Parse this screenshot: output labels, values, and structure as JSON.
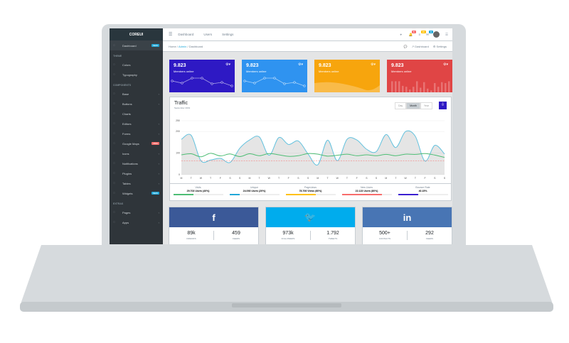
{
  "brand": "COREUI",
  "sidebar": {
    "dashboard": {
      "label": "Dashboard",
      "badge": "NEW"
    },
    "theme_title": "THEME",
    "theme": [
      {
        "label": "Colors",
        "icon": "drop-icon"
      },
      {
        "label": "Typography",
        "icon": "pencil-icon"
      }
    ],
    "components_title": "COMPONENTS",
    "components": [
      {
        "label": "Base",
        "icon": "puzzle-icon",
        "caret": true
      },
      {
        "label": "Buttons",
        "icon": "cursor-icon",
        "caret": true
      },
      {
        "label": "Charts",
        "icon": "pie-chart-icon"
      },
      {
        "label": "Editors",
        "icon": "code-icon",
        "caret": true
      },
      {
        "label": "Forms",
        "icon": "note-icon",
        "caret": true
      },
      {
        "label": "Google Maps",
        "icon": "map-icon",
        "badge": "PRO",
        "badge_color": "#f86c6b"
      },
      {
        "label": "Icons",
        "icon": "star-icon",
        "caret": true
      },
      {
        "label": "Notifications",
        "icon": "bell-icon",
        "caret": true
      },
      {
        "label": "Plugins",
        "icon": "energy-icon",
        "caret": true
      },
      {
        "label": "Tables",
        "icon": "list-icon",
        "caret": true
      },
      {
        "label": "Widgets",
        "icon": "calculator-icon",
        "badge": "NEW",
        "badge_color": "#20a8d8"
      }
    ],
    "extras_title": "EXTRAS",
    "extras": [
      {
        "label": "Pages",
        "icon": "star-icon",
        "caret": true
      },
      {
        "label": "Apps",
        "icon": "layers-icon",
        "caret": true
      }
    ]
  },
  "header": {
    "nav": [
      "Dashboard",
      "Users",
      "Settings"
    ],
    "badges": [
      "5",
      "15",
      "9"
    ]
  },
  "breadcrumb": {
    "items": [
      "Home",
      "Admin",
      "Dashboard"
    ],
    "right": [
      "Dashboard",
      "Settings"
    ]
  },
  "stats": [
    {
      "value": "9.823",
      "label": "Members online",
      "color": "#2e19c4"
    },
    {
      "value": "9.823",
      "label": "Members online",
      "color": "#2f93f0"
    },
    {
      "value": "9.823",
      "label": "Members online",
      "color": "#f7a50d"
    },
    {
      "value": "9.823",
      "label": "Members online",
      "color": "#e04545"
    }
  ],
  "traffic": {
    "title": "Traffic",
    "subtitle": "September 2019",
    "ranges": [
      "Day",
      "Month",
      "Year"
    ],
    "active_range": "Month"
  },
  "chart_data": {
    "type": "line",
    "ylim": [
      0,
      250
    ],
    "yticks": [
      0,
      100,
      200,
      250
    ],
    "categories": [
      "M",
      "T",
      "W",
      "T",
      "F",
      "S",
      "S",
      "M",
      "T",
      "W",
      "T",
      "F",
      "S",
      "S",
      "M",
      "T",
      "W",
      "T",
      "F",
      "S",
      "S",
      "M",
      "T",
      "W",
      "T",
      "F",
      "S",
      "S"
    ],
    "series": [
      {
        "values": [
          164,
          183,
          65,
          68,
          76,
          57,
          123,
          161,
          175,
          90,
          172,
          140,
          156,
          96,
          46,
          160,
          65,
          164,
          161,
          118,
          107,
          186,
          126,
          200,
          178,
          63,
          136,
          96
        ],
        "color": "#63c2de"
      },
      {
        "values": [
          92,
          97,
          83,
          99,
          87,
          96,
          84,
          97,
          88,
          98,
          92,
          85,
          88,
          98,
          95,
          86,
          90,
          95,
          88,
          92,
          88,
          94,
          88,
          95,
          94,
          98,
          91,
          80
        ],
        "color": "#4dbd74"
      },
      {
        "values": [
          65,
          65,
          65,
          65,
          65,
          65,
          65,
          65,
          65,
          65,
          65,
          65,
          65,
          65,
          65,
          65,
          65,
          65,
          65,
          65,
          65,
          65,
          65,
          65,
          65,
          65,
          65,
          65
        ],
        "color": "#f86c6b"
      }
    ]
  },
  "traffic_footer": [
    {
      "label": "Visits",
      "value": "29.703 Users (40%)",
      "pct": 40,
      "color": "#4dbd74"
    },
    {
      "label": "Unique",
      "value": "24.093 Users (20%)",
      "pct": 20,
      "color": "#20a8d8"
    },
    {
      "label": "Pageviews",
      "value": "78.706 Views (60%)",
      "pct": 60,
      "color": "#ffc107"
    },
    {
      "label": "New Users",
      "value": "22.123 Users (80%)",
      "pct": 80,
      "color": "#f86c6b"
    },
    {
      "label": "Bounce Rate",
      "value": "40.15%",
      "pct": 40,
      "color": "#3b1fd1"
    }
  ],
  "social": [
    {
      "icon": "f",
      "color": "#3b5998",
      "a": "89k",
      "al": "FRIENDS",
      "b": "459",
      "bl": "FEEDS"
    },
    {
      "icon": "🐦",
      "color": "#00aced",
      "a": "973k",
      "al": "FOLLOWERS",
      "b": "1.792",
      "bl": "TWEETS"
    },
    {
      "icon": "in",
      "color": "#4875b4",
      "a": "500+",
      "al": "CONTACTS",
      "b": "292",
      "bl": "FEEDS"
    }
  ]
}
